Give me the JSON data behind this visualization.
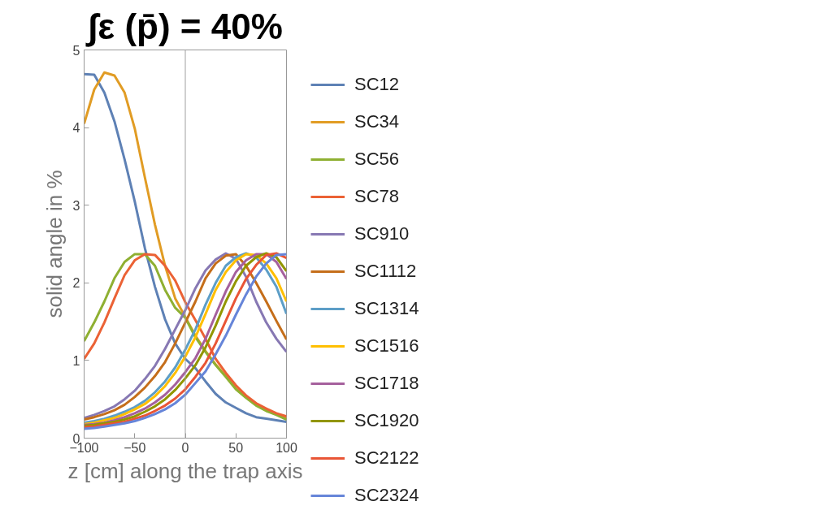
{
  "chart_data": {
    "type": "line",
    "title": "∫ε (p̄) = 40%",
    "xlabel": "z [cm] along the trap axis",
    "ylabel": "solid angle in %",
    "x": [
      -100,
      -90,
      -80,
      -70,
      -60,
      -50,
      -40,
      -30,
      -20,
      -10,
      0,
      10,
      20,
      30,
      40,
      50,
      60,
      70,
      80,
      90,
      100
    ],
    "xlim": [
      -100,
      100
    ],
    "ylim": [
      0,
      5
    ],
    "xticks": [
      {
        "value": -100,
        "label": "−100"
      },
      {
        "value": -50,
        "label": "−50"
      },
      0,
      50,
      100
    ],
    "yticks": [
      0,
      1,
      2,
      3,
      4,
      5
    ],
    "grid": false,
    "legend": "right",
    "marker": "none",
    "line_style": "solid",
    "ref_lines": [
      {
        "axis": "x",
        "value": 0,
        "color": "#a0a0a0"
      }
    ],
    "series": [
      {
        "name": "SC12",
        "color": "#5e81b5",
        "values": [
          4.69,
          4.68,
          4.45,
          4.08,
          3.59,
          3.05,
          2.45,
          1.95,
          1.53,
          1.22,
          1.02,
          0.9,
          0.73,
          0.57,
          0.46,
          0.39,
          0.32,
          0.27,
          0.25,
          0.23,
          0.21
        ]
      },
      {
        "name": "SC34",
        "color": "#e19c24",
        "values": [
          4.05,
          4.49,
          4.71,
          4.67,
          4.45,
          3.99,
          3.36,
          2.75,
          2.22,
          1.8,
          1.56,
          1.32,
          1.12,
          0.95,
          0.8,
          0.64,
          0.53,
          0.43,
          0.36,
          0.31,
          0.25
        ]
      },
      {
        "name": "SC56",
        "color": "#8fb032",
        "values": [
          1.25,
          1.49,
          1.76,
          2.06,
          2.27,
          2.37,
          2.37,
          2.22,
          1.91,
          1.68,
          1.55,
          1.3,
          1.11,
          0.94,
          0.79,
          0.63,
          0.52,
          0.42,
          0.35,
          0.3,
          0.24
        ]
      },
      {
        "name": "SC78",
        "color": "#eb6235",
        "values": [
          1.02,
          1.22,
          1.49,
          1.8,
          2.1,
          2.29,
          2.37,
          2.36,
          2.22,
          2.03,
          1.75,
          1.52,
          1.28,
          1.02,
          0.84,
          0.68,
          0.55,
          0.45,
          0.38,
          0.32,
          0.28
        ]
      },
      {
        "name": "SC910",
        "color": "#8778b3",
        "values": [
          0.26,
          0.3,
          0.35,
          0.41,
          0.5,
          0.61,
          0.76,
          0.93,
          1.15,
          1.4,
          1.65,
          1.93,
          2.16,
          2.3,
          2.38,
          2.31,
          2.08,
          1.76,
          1.49,
          1.28,
          1.11
        ]
      },
      {
        "name": "SC1112",
        "color": "#c56e1a",
        "values": [
          0.24,
          0.27,
          0.31,
          0.36,
          0.43,
          0.53,
          0.65,
          0.8,
          0.98,
          1.22,
          1.49,
          1.76,
          2.06,
          2.25,
          2.35,
          2.37,
          2.22,
          2.0,
          1.76,
          1.51,
          1.27
        ]
      },
      {
        "name": "SC1314",
        "color": "#5d9ec7",
        "values": [
          0.2,
          0.22,
          0.25,
          0.29,
          0.34,
          0.4,
          0.48,
          0.59,
          0.73,
          0.91,
          1.14,
          1.4,
          1.72,
          2.0,
          2.22,
          2.33,
          2.38,
          2.33,
          2.17,
          1.95,
          1.6
        ]
      },
      {
        "name": "SC1516",
        "color": "#ffbf00",
        "values": [
          0.18,
          0.2,
          0.23,
          0.26,
          0.31,
          0.37,
          0.44,
          0.54,
          0.67,
          0.84,
          1.05,
          1.3,
          1.6,
          1.91,
          2.14,
          2.29,
          2.37,
          2.36,
          2.25,
          2.06,
          1.76
        ]
      },
      {
        "name": "SC1718",
        "color": "#a5609d",
        "values": [
          0.17,
          0.18,
          0.2,
          0.23,
          0.27,
          0.32,
          0.38,
          0.46,
          0.56,
          0.69,
          0.85,
          1.03,
          1.28,
          1.59,
          1.89,
          2.14,
          2.29,
          2.37,
          2.37,
          2.27,
          2.05
        ]
      },
      {
        "name": "SC1920",
        "color": "#929600",
        "values": [
          0.16,
          0.17,
          0.19,
          0.21,
          0.24,
          0.28,
          0.34,
          0.41,
          0.5,
          0.62,
          0.77,
          0.94,
          1.17,
          1.45,
          1.76,
          2.02,
          2.22,
          2.33,
          2.38,
          2.33,
          2.15
        ]
      },
      {
        "name": "SC2122",
        "color": "#e95536",
        "values": [
          0.14,
          0.15,
          0.17,
          0.19,
          0.21,
          0.25,
          0.29,
          0.35,
          0.42,
          0.51,
          0.63,
          0.79,
          0.97,
          1.22,
          1.51,
          1.8,
          2.05,
          2.23,
          2.36,
          2.38,
          2.32
        ]
      },
      {
        "name": "SC2324",
        "color": "#6685d9",
        "values": [
          0.12,
          0.13,
          0.15,
          0.17,
          0.19,
          0.22,
          0.26,
          0.31,
          0.37,
          0.45,
          0.56,
          0.71,
          0.86,
          1.08,
          1.32,
          1.59,
          1.85,
          2.08,
          2.25,
          2.36,
          2.37
        ]
      }
    ]
  }
}
